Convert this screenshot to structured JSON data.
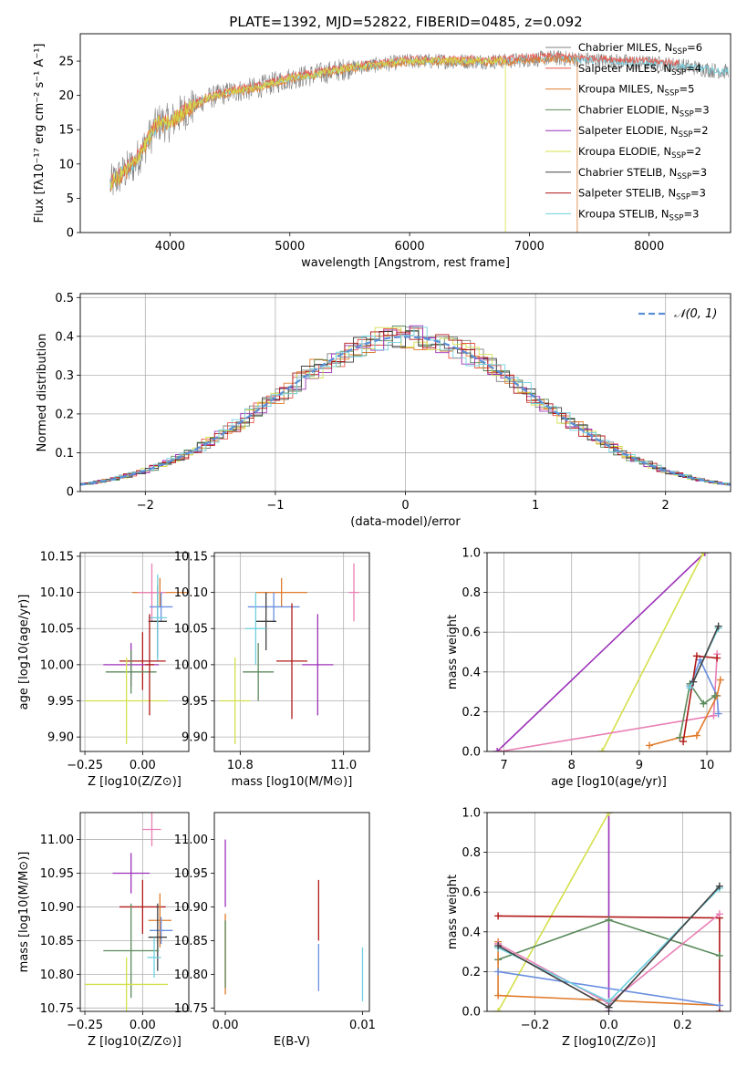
{
  "title": "PLATE=1392, MJD=52822, FIBERID=0485, z=0.092",
  "colors": {
    "chabrier_miles": "#808080",
    "salpeter_miles": "#e8564a",
    "kroupa_miles": "#e07b2c",
    "chabrier_elodie": "#5b8a5b",
    "salpeter_elodie": "#9b30b8",
    "kroupa_elodie": "#d4e04a",
    "chabrier_stelib": "#404040",
    "salpeter_stelib": "#b01818",
    "kroupa_stelib": "#6fd0e0",
    "pink": "#e97fb5",
    "blue": "#6a8fe0",
    "gauss": "#5a8fd8"
  },
  "legend": [
    {
      "label": "Chabrier MILES, N",
      "sub": "SSP",
      "eq": "=6",
      "color": "chabrier_miles"
    },
    {
      "label": "Salpeter MILES, N",
      "sub": "SSP",
      "eq": "=4",
      "color": "salpeter_miles"
    },
    {
      "label": "Kroupa MILES, N",
      "sub": "SSP",
      "eq": "=5",
      "color": "kroupa_miles"
    },
    {
      "label": "Chabrier ELODIE, N",
      "sub": "SSP",
      "eq": "=3",
      "color": "chabrier_elodie"
    },
    {
      "label": "Salpeter ELODIE, N",
      "sub": "SSP",
      "eq": "=2",
      "color": "salpeter_elodie"
    },
    {
      "label": "Kroupa ELODIE, N",
      "sub": "SSP",
      "eq": "=2",
      "color": "kroupa_elodie"
    },
    {
      "label": "Chabrier STELIB, N",
      "sub": "SSP",
      "eq": "=3",
      "color": "chabrier_stelib"
    },
    {
      "label": "Salpeter STELIB, N",
      "sub": "SSP",
      "eq": "=3",
      "color": "salpeter_stelib"
    },
    {
      "label": "Kroupa STELIB, N",
      "sub": "SSP",
      "eq": "=3",
      "color": "kroupa_stelib"
    }
  ],
  "chart_data": [
    {
      "id": "spectrum",
      "type": "line",
      "xlabel": "wavelength [Angstrom, rest frame]",
      "ylabel": "Flux [fλ10⁻¹⁷ erg cm⁻² s⁻¹ A⁻¹]",
      "xlim": [
        3250,
        8680
      ],
      "ylim": [
        0,
        29
      ],
      "xticks": [
        4000,
        5000,
        6000,
        7000,
        8000
      ],
      "yticks": [
        0,
        5,
        10,
        15,
        20,
        25
      ],
      "grid": false,
      "legend_position": "top-right",
      "continuum": [
        [
          3500,
          7
        ],
        [
          3700,
          10
        ],
        [
          3800,
          13
        ],
        [
          3900,
          16
        ],
        [
          4000,
          16
        ],
        [
          4100,
          17.5
        ],
        [
          4300,
          19.5
        ],
        [
          4500,
          20.5
        ],
        [
          4700,
          21
        ],
        [
          5000,
          22.5
        ],
        [
          5200,
          23
        ],
        [
          5500,
          24
        ],
        [
          6000,
          25
        ],
        [
          6300,
          25
        ],
        [
          6800,
          25
        ],
        [
          7200,
          25.5
        ],
        [
          7700,
          25
        ],
        [
          8200,
          24.5
        ],
        [
          8600,
          23.5
        ]
      ],
      "dropouts": [
        {
          "series": "kroupa_elodie",
          "x": 6800
        },
        {
          "series": "kroupa_miles",
          "x": 7400
        }
      ]
    },
    {
      "id": "residuals",
      "type": "line",
      "xlabel": "(data-model)/error",
      "ylabel": "Normed distribution",
      "xlim": [
        -2.5,
        2.5
      ],
      "ylim": [
        0,
        0.51
      ],
      "xticks": [
        -2,
        -1,
        0,
        1,
        2
      ],
      "yticks": [
        0,
        0.1,
        0.2,
        0.3,
        0.4,
        0.5
      ],
      "grid": true,
      "legend_position": "top-right",
      "legend_label": "𝒩(0, 1)",
      "gaussian": {
        "mu": 0,
        "sigma": 1
      }
    },
    {
      "id": "age_vs_Z",
      "type": "scatter",
      "xlabel": "Z [log10(Z/Z⊙)]",
      "ylabel": "age  [log10(age/yr)]",
      "xlim": [
        -0.27,
        0.2
      ],
      "ylim": [
        9.88,
        10.155
      ],
      "xticks": [
        -0.25,
        0.0
      ],
      "yticks": [
        9.9,
        9.95,
        10.0,
        10.05,
        10.1,
        10.15
      ],
      "grid": true,
      "points": [
        {
          "x": 0.075,
          "y": 10.1,
          "xerr": 0.12,
          "yerr": 0.02,
          "color": "kroupa_miles"
        },
        {
          "x": 0.04,
          "y": 10.1,
          "xerr": 0.06,
          "yerr": 0.04,
          "color": "pink"
        },
        {
          "x": 0.08,
          "y": 10.08,
          "xerr": 0.05,
          "yerr": 0.02,
          "color": "blue"
        },
        {
          "x": 0.065,
          "y": 10.06,
          "xerr": 0.04,
          "yerr": 0.05,
          "color": "chabrier_stelib"
        },
        {
          "x": 0.065,
          "y": 10.065,
          "xerr": 0.04,
          "yerr": 0.06,
          "color": "kroupa_stelib"
        },
        {
          "x": 0.0,
          "y": 10.005,
          "xerr": 0.1,
          "yerr": 0.04,
          "color": "salpeter_stelib"
        },
        {
          "x": -0.05,
          "y": 10.0,
          "xerr": 0.12,
          "yerr": 0.03,
          "color": "salpeter_elodie"
        },
        {
          "x": -0.05,
          "y": 9.99,
          "xerr": 0.11,
          "yerr": 0.03,
          "color": "chabrier_elodie"
        },
        {
          "x": -0.07,
          "y": 9.95,
          "xerr": 0.18,
          "yerr": 0.06,
          "color": "kroupa_elodie"
        },
        {
          "x": 0.03,
          "y": 10.0,
          "xerr": 0.02,
          "yerr": 0.07,
          "color": "salpeter_stelib"
        }
      ]
    },
    {
      "id": "age_vs_mass",
      "type": "scatter",
      "xlabel": "mass [log10(M/M⊙)]",
      "ylabel": "",
      "xlim": [
        10.75,
        11.05
      ],
      "ylim": [
        9.88,
        10.155
      ],
      "xticks": [
        10.8,
        11.0
      ],
      "yticks": [
        9.9,
        9.95,
        10.0,
        10.05,
        10.1,
        10.15
      ],
      "grid": true,
      "points": [
        {
          "x": 10.88,
          "y": 10.1,
          "xerr": 0.05,
          "yerr": 0.02,
          "color": "kroupa_miles"
        },
        {
          "x": 11.02,
          "y": 10.1,
          "xerr": 0.01,
          "yerr": 0.04,
          "color": "pink"
        },
        {
          "x": 10.865,
          "y": 10.08,
          "xerr": 0.05,
          "yerr": 0.02,
          "color": "blue"
        },
        {
          "x": 10.85,
          "y": 10.06,
          "xerr": 0.02,
          "yerr": 0.04,
          "color": "chabrier_stelib"
        },
        {
          "x": 10.83,
          "y": 10.05,
          "xerr": 0.02,
          "yerr": 0.05,
          "color": "kroupa_stelib"
        },
        {
          "x": 10.9,
          "y": 10.005,
          "xerr": 0.03,
          "yerr": 0.08,
          "color": "salpeter_stelib"
        },
        {
          "x": 10.95,
          "y": 10.0,
          "xerr": 0.03,
          "yerr": 0.07,
          "color": "salpeter_elodie"
        },
        {
          "x": 10.835,
          "y": 9.99,
          "xerr": 0.03,
          "yerr": 0.04,
          "color": "chabrier_elodie"
        },
        {
          "x": 10.79,
          "y": 9.95,
          "xerr": 0.03,
          "yerr": 0.06,
          "color": "kroupa_elodie"
        }
      ]
    },
    {
      "id": "weight_vs_age",
      "type": "line",
      "xlabel": "age  [log10(age/yr)]",
      "ylabel": "mass weight",
      "xlim": [
        6.75,
        10.35
      ],
      "ylim": [
        0,
        1.0
      ],
      "xticks": [
        7,
        8,
        9,
        10
      ],
      "yticks": [
        0.0,
        0.2,
        0.4,
        0.6,
        0.8,
        1.0
      ],
      "grid": true,
      "series": [
        {
          "color": "salpeter_elodie",
          "x": [
            6.9,
            9.97
          ],
          "y": [
            0.0,
            1.0
          ]
        },
        {
          "color": "kroupa_elodie",
          "x": [
            8.45,
            9.95
          ],
          "y": [
            0.0,
            1.0
          ]
        },
        {
          "color": "pink",
          "x": [
            6.95,
            10.1,
            10.15
          ],
          "y": [
            0.0,
            0.18,
            0.49
          ]
        },
        {
          "color": "blue",
          "x": [
            9.75,
            9.9,
            10.15,
            10.17
          ],
          "y": [
            0.33,
            0.46,
            0.28,
            0.19
          ]
        },
        {
          "color": "kroupa_miles",
          "x": [
            9.15,
            9.6,
            9.85,
            10.15,
            10.2
          ],
          "y": [
            0.03,
            0.07,
            0.08,
            0.28,
            0.36
          ]
        },
        {
          "color": "chabrier_elodie",
          "x": [
            9.6,
            9.75,
            9.95,
            10.12
          ],
          "y": [
            0.07,
            0.34,
            0.24,
            0.28
          ]
        },
        {
          "color": "salpeter_stelib",
          "x": [
            9.65,
            9.85,
            10.15
          ],
          "y": [
            0.05,
            0.48,
            0.47
          ]
        },
        {
          "color": "kroupa_stelib",
          "x": [
            9.75,
            10.17
          ],
          "y": [
            0.32,
            0.62
          ]
        },
        {
          "color": "chabrier_stelib",
          "x": [
            9.8,
            10.17
          ],
          "y": [
            0.35,
            0.63
          ]
        }
      ]
    },
    {
      "id": "mass_vs_Z",
      "type": "scatter",
      "xlabel": "Z [log10(Z/Z⊙)]",
      "ylabel": "mass [log10(M/M⊙)]",
      "xlim": [
        -0.27,
        0.2
      ],
      "ylim": [
        10.745,
        11.04
      ],
      "xticks": [
        -0.25,
        0.0
      ],
      "yticks": [
        10.75,
        10.8,
        10.85,
        10.9,
        10.95,
        11.0
      ],
      "grid": true,
      "points": [
        {
          "x": 0.04,
          "y": 11.015,
          "xerr": 0.04,
          "yerr": 0.025,
          "color": "pink"
        },
        {
          "x": -0.05,
          "y": 10.95,
          "xerr": 0.08,
          "yerr": 0.03,
          "color": "salpeter_elodie"
        },
        {
          "x": 0.0,
          "y": 10.9,
          "xerr": 0.1,
          "yerr": 0.04,
          "color": "salpeter_stelib"
        },
        {
          "x": 0.075,
          "y": 10.88,
          "xerr": 0.05,
          "yerr": 0.04,
          "color": "kroupa_miles"
        },
        {
          "x": 0.08,
          "y": 10.865,
          "xerr": 0.05,
          "yerr": 0.02,
          "color": "blue"
        },
        {
          "x": 0.065,
          "y": 10.855,
          "xerr": 0.04,
          "yerr": 0.05,
          "color": "chabrier_stelib"
        },
        {
          "x": -0.05,
          "y": 10.835,
          "xerr": 0.12,
          "yerr": 0.07,
          "color": "chabrier_elodie"
        },
        {
          "x": 0.05,
          "y": 10.825,
          "xerr": 0.03,
          "yerr": 0.03,
          "color": "kroupa_stelib"
        },
        {
          "x": -0.07,
          "y": 10.785,
          "xerr": 0.18,
          "yerr": 0.04,
          "color": "kroupa_elodie"
        }
      ]
    },
    {
      "id": "mass_vs_EBV",
      "type": "scatter",
      "xlabel": "E(B-V)",
      "ylabel": "",
      "xlim": [
        -0.0008,
        0.0105
      ],
      "ylim": [
        10.745,
        11.04
      ],
      "xticks": [
        0.0,
        0.01
      ],
      "yticks": [
        10.75,
        10.8,
        10.85,
        10.9,
        10.95,
        11.0
      ],
      "grid": false,
      "points": [
        {
          "x": 0.0,
          "y": 10.95,
          "yerr": 0.05,
          "color": "salpeter_elodie"
        },
        {
          "x": 0.0,
          "y": 10.83,
          "yerr": 0.06,
          "color": "kroupa_miles"
        },
        {
          "x": 0.0,
          "y": 10.83,
          "yerr": 0.05,
          "color": "chabrier_elodie"
        },
        {
          "x": 0.0068,
          "y": 10.895,
          "yerr": 0.045,
          "color": "salpeter_stelib"
        },
        {
          "x": 0.0068,
          "y": 10.81,
          "yerr": 0.035,
          "color": "blue"
        },
        {
          "x": 0.01,
          "y": 10.8,
          "yerr": 0.04,
          "color": "kroupa_stelib"
        }
      ]
    },
    {
      "id": "weight_vs_Z",
      "type": "line",
      "xlabel": "Z [log10(Z/Z⊙)]",
      "ylabel": "mass weight",
      "xlim": [
        -0.33,
        0.33
      ],
      "ylim": [
        0,
        1.0
      ],
      "xticks": [
        -0.2,
        0.0,
        0.2
      ],
      "yticks": [
        0.0,
        0.2,
        0.4,
        0.6,
        0.8,
        1.0
      ],
      "grid": true,
      "series": [
        {
          "color": "salpeter_elodie",
          "x": [
            0.0,
            0.0
          ],
          "y": [
            0.0,
            1.0
          ]
        },
        {
          "color": "kroupa_elodie",
          "x": [
            -0.3,
            0.0
          ],
          "y": [
            0.0,
            1.0
          ]
        },
        {
          "color": "salpeter_stelib",
          "x": [
            -0.3,
            0.3,
            0.3
          ],
          "y": [
            0.48,
            0.47,
            0.0
          ]
        },
        {
          "color": "chabrier_elodie",
          "x": [
            -0.3,
            0.0,
            0.3
          ],
          "y": [
            0.26,
            0.46,
            0.28
          ]
        },
        {
          "color": "kroupa_miles",
          "x": [
            -0.3,
            -0.3,
            0.3
          ],
          "y": [
            0.35,
            0.08,
            0.03
          ]
        },
        {
          "color": "blue",
          "x": [
            -0.3,
            0.3
          ],
          "y": [
            0.2,
            0.03
          ]
        },
        {
          "color": "pink",
          "x": [
            -0.3,
            0.0,
            0.3
          ],
          "y": [
            0.34,
            0.04,
            0.49
          ]
        },
        {
          "color": "kroupa_stelib",
          "x": [
            -0.3,
            0.0,
            0.3
          ],
          "y": [
            0.32,
            0.05,
            0.62
          ]
        },
        {
          "color": "chabrier_stelib",
          "x": [
            -0.3,
            0.0,
            0.3
          ],
          "y": [
            0.33,
            0.02,
            0.63
          ]
        }
      ]
    }
  ]
}
